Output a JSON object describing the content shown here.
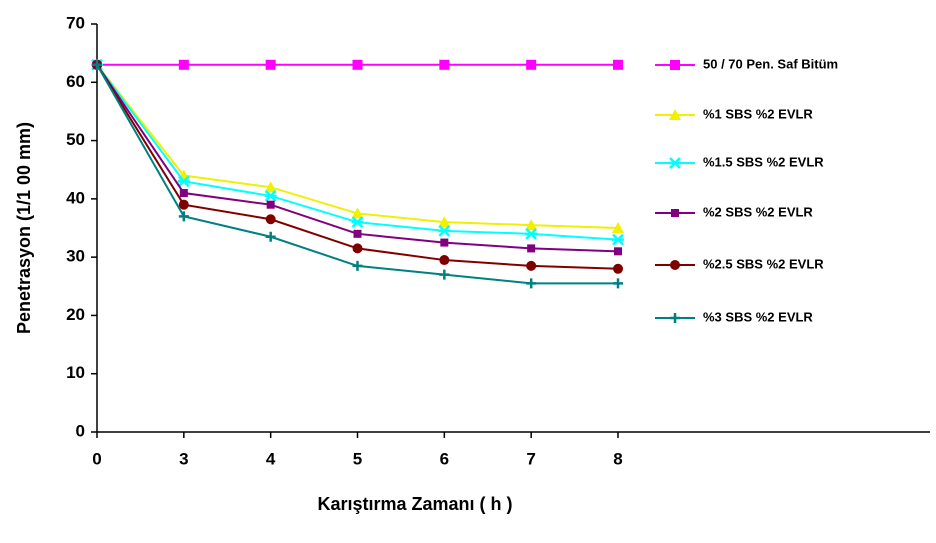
{
  "chart_data": {
    "type": "line",
    "xlabel": "Karıştırma Zamanı ( h )",
    "ylabel": "Penetrasyon (1/1 00 mm)",
    "categories": [
      "0",
      "3",
      "4",
      "5",
      "6",
      "7",
      "8"
    ],
    "ylim": [
      0,
      70
    ],
    "yticks": [
      0,
      10,
      20,
      30,
      40,
      50,
      60,
      70
    ],
    "grid": false,
    "legend": "right",
    "series": [
      {
        "name": "50 / 70 Pen. Saf Bitüm",
        "color": "#ff00ff",
        "marker": "square",
        "values": [
          63,
          63,
          63,
          63,
          63,
          63,
          63
        ]
      },
      {
        "name": "%1 SBS %2 EVLR",
        "color": "#f0f000",
        "marker": "triangle",
        "values": [
          63,
          44,
          42,
          37.5,
          36,
          35.5,
          35
        ]
      },
      {
        "name": "%1.5 SBS %2 EVLR",
        "color": "#00ffff",
        "marker": "cross",
        "values": [
          63,
          43,
          40.5,
          36,
          34.5,
          34,
          33
        ]
      },
      {
        "name": "%2 SBS %2 EVLR",
        "color": "#800080",
        "marker": "square-small",
        "values": [
          63,
          41,
          39,
          34,
          32.5,
          31.5,
          31
        ]
      },
      {
        "name": "%2.5 SBS %2 EVLR",
        "color": "#800000",
        "marker": "circle",
        "values": [
          63,
          39,
          36.5,
          31.5,
          29.5,
          28.5,
          28
        ]
      },
      {
        "name": "%3 SBS %2 EVLR",
        "color": "#008080",
        "marker": "plus",
        "values": [
          63,
          37,
          33.5,
          28.5,
          27,
          25.5,
          25.5
        ]
      }
    ]
  }
}
